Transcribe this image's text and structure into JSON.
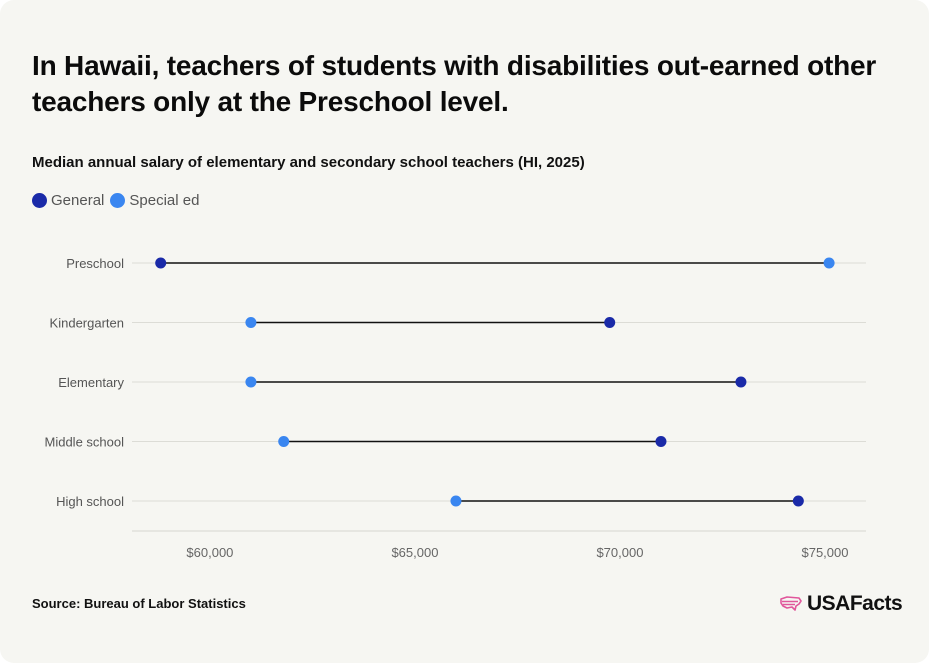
{
  "title": "In Hawaii, teachers of students with disabilities out-earned other teachers only at the Preschool level.",
  "subtitle": "Median annual salary of elementary and secondary school teachers (HI, 2025)",
  "legend": [
    {
      "label": "General",
      "color": "#1a2aa8"
    },
    {
      "label": "Special ed",
      "color": "#3a86f0"
    }
  ],
  "source": "Source: Bureau of Labor Statistics",
  "logo_text": "USAFacts",
  "logo_color": "#e0569b",
  "chart_data": {
    "type": "dumbbell",
    "title": "In Hawaii, teachers of students with disabilities out-earned other teachers only at the Preschool level.",
    "subtitle": "Median annual salary of elementary and secondary school teachers (HI, 2025)",
    "categories": [
      "Preschool",
      "Kindergarten",
      "Elementary",
      "Middle school",
      "High school"
    ],
    "series": [
      {
        "name": "General",
        "color": "#1a2aa8",
        "values": [
          58800,
          69750,
          72950,
          71000,
          74350
        ]
      },
      {
        "name": "Special ed",
        "color": "#3a86f0",
        "values": [
          75100,
          61000,
          61000,
          61800,
          66000
        ]
      }
    ],
    "x_ticks": [
      {
        "value": 60000,
        "label": "$60,000"
      },
      {
        "value": 65000,
        "label": "$65,000"
      },
      {
        "value": 70000,
        "label": "$70,000"
      },
      {
        "value": 75000,
        "label": "$75,000"
      }
    ],
    "xlim": [
      58100,
      76000
    ],
    "grid": true,
    "legend_position": "top-left"
  }
}
